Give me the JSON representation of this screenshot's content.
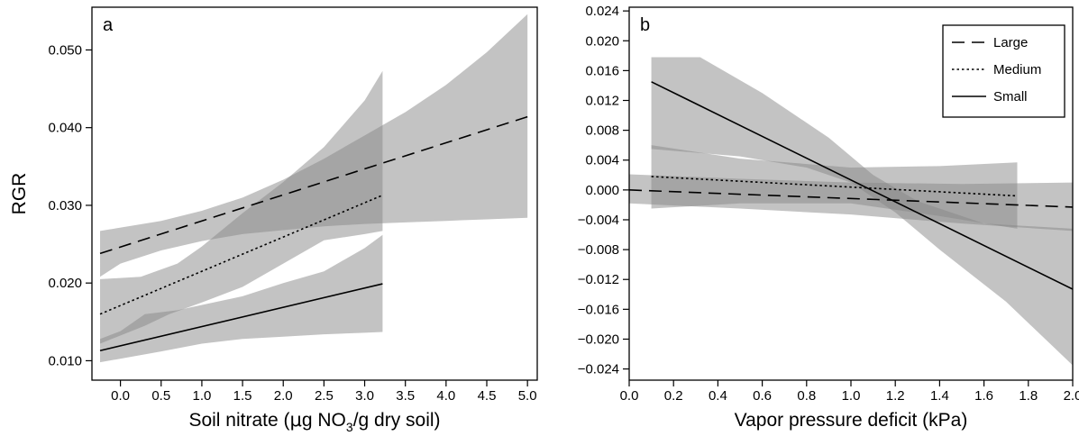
{
  "chart_data": [
    {
      "type": "line",
      "panel_label": "a",
      "xlabel_prefix": "Soil nitrate (",
      "xlabel_mu": "μ",
      "xlabel_mid": "g NO",
      "xlabel_sub": "3",
      "xlabel_suffix": "/g dry soil)",
      "ylabel": "RGR",
      "xlim": [
        -0.35,
        5.12
      ],
      "ylim": [
        0.0075,
        0.0555
      ],
      "x_ticks": [
        0.0,
        0.5,
        1.0,
        1.5,
        2.0,
        2.5,
        3.0,
        3.5,
        4.0,
        4.5,
        5.0
      ],
      "x_tick_labels": [
        "0.0",
        "0.5",
        "1.0",
        "1.5",
        "2.0",
        "2.5",
        "3.0",
        "3.5",
        "4.0",
        "4.5",
        "5.0"
      ],
      "y_ticks": [
        0.01,
        0.02,
        0.03,
        0.04,
        0.05
      ],
      "y_tick_labels": [
        "0.010",
        "0.020",
        "0.030",
        "0.040",
        "0.050"
      ],
      "series": [
        {
          "name": "Large",
          "style": "dashed",
          "line": [
            [
              -0.25,
              0.0238
            ],
            [
              5.0,
              0.0414
            ]
          ],
          "band_upper": [
            [
              -0.25,
              0.0267
            ],
            [
              0.5,
              0.028
            ],
            [
              1.0,
              0.0293
            ],
            [
              1.5,
              0.031
            ],
            [
              2.0,
              0.0333
            ],
            [
              2.5,
              0.036
            ],
            [
              3.0,
              0.039
            ],
            [
              3.5,
              0.042
            ],
            [
              4.0,
              0.0455
            ],
            [
              4.5,
              0.0497
            ],
            [
              5.0,
              0.0546
            ]
          ],
          "band_lower": [
            [
              -0.25,
              0.0208
            ],
            [
              0.0,
              0.0225
            ],
            [
              0.5,
              0.0242
            ],
            [
              1.0,
              0.0254
            ],
            [
              1.5,
              0.0263
            ],
            [
              2.0,
              0.0268
            ],
            [
              2.5,
              0.0273
            ],
            [
              3.0,
              0.0276
            ],
            [
              3.5,
              0.0278
            ],
            [
              4.0,
              0.028
            ],
            [
              4.5,
              0.0282
            ],
            [
              5.0,
              0.0284
            ]
          ]
        },
        {
          "name": "Medium",
          "style": "dotted",
          "line": [
            [
              -0.25,
              0.016
            ],
            [
              3.22,
              0.0313
            ]
          ],
          "band_upper": [
            [
              -0.25,
              0.0205
            ],
            [
              0.25,
              0.0208
            ],
            [
              0.7,
              0.0225
            ],
            [
              1.0,
              0.0247
            ],
            [
              1.5,
              0.029
            ],
            [
              2.0,
              0.033
            ],
            [
              2.5,
              0.0375
            ],
            [
              3.0,
              0.0435
            ],
            [
              3.22,
              0.0473
            ]
          ],
          "band_lower": [
            [
              -0.25,
              0.0122
            ],
            [
              0.3,
              0.0145
            ],
            [
              0.6,
              0.016
            ],
            [
              1.0,
              0.0175
            ],
            [
              1.5,
              0.0195
            ],
            [
              2.0,
              0.0225
            ],
            [
              2.5,
              0.0255
            ],
            [
              3.0,
              0.0263
            ],
            [
              3.22,
              0.0267
            ]
          ]
        },
        {
          "name": "Small",
          "style": "solid",
          "line": [
            [
              -0.25,
              0.0113
            ],
            [
              3.22,
              0.0199
            ]
          ],
          "band_upper": [
            [
              -0.25,
              0.0128
            ],
            [
              0.0,
              0.0138
            ],
            [
              0.3,
              0.016
            ],
            [
              0.7,
              0.0165
            ],
            [
              1.5,
              0.0183
            ],
            [
              2.0,
              0.02
            ],
            [
              2.5,
              0.0215
            ],
            [
              3.0,
              0.0245
            ],
            [
              3.22,
              0.0262
            ]
          ],
          "band_lower": [
            [
              -0.25,
              0.0098
            ],
            [
              0.5,
              0.0112
            ],
            [
              1.0,
              0.0122
            ],
            [
              1.5,
              0.0128
            ],
            [
              2.0,
              0.0131
            ],
            [
              2.5,
              0.0134
            ],
            [
              3.0,
              0.0136
            ],
            [
              3.22,
              0.0137
            ]
          ]
        }
      ]
    },
    {
      "type": "line",
      "panel_label": "b",
      "xlabel": "Vapor pressure deficit (kPa)",
      "ylabel": "",
      "xlim": [
        0.0,
        2.0
      ],
      "ylim": [
        -0.0255,
        0.0245
      ],
      "x_ticks": [
        0.0,
        0.2,
        0.4,
        0.6,
        0.8,
        1.0,
        1.2,
        1.4,
        1.6,
        1.8,
        2.0
      ],
      "x_tick_labels": [
        "0.0",
        "0.2",
        "0.4",
        "0.6",
        "0.8",
        "1.0",
        "1.2",
        "1.4",
        "1.6",
        "1.8",
        "2.0"
      ],
      "y_ticks": [
        0.024,
        0.02,
        0.016,
        0.012,
        0.008,
        0.004,
        0.0,
        -0.004,
        -0.008,
        -0.012,
        -0.016,
        -0.02,
        -0.024
      ],
      "y_tick_labels": [
        "0.024",
        "0.020",
        "0.016",
        "0.012",
        "0.008",
        "0.004",
        "0.000",
        "−0.004",
        "−0.008",
        "−0.012",
        "−0.016",
        "−0.020",
        "−0.024"
      ],
      "legend": {
        "position": "top-right",
        "entries": [
          {
            "label": "Large",
            "style": "dashed"
          },
          {
            "label": "Medium",
            "style": "dotted"
          },
          {
            "label": "Small",
            "style": "solid"
          }
        ]
      },
      "series": [
        {
          "name": "Large",
          "style": "dashed",
          "line": [
            [
              0.0,
              0.0
            ],
            [
              2.0,
              -0.0023
            ]
          ],
          "band_upper": [
            [
              0.0,
              0.0021
            ],
            [
              0.5,
              0.0015
            ],
            [
              1.0,
              0.001
            ],
            [
              1.5,
              0.0008
            ],
            [
              2.0,
              0.001
            ]
          ],
          "band_lower": [
            [
              0.0,
              -0.0018
            ],
            [
              0.5,
              -0.0025
            ],
            [
              1.0,
              -0.0033
            ],
            [
              1.5,
              -0.0045
            ],
            [
              2.0,
              -0.0055
            ]
          ]
        },
        {
          "name": "Medium",
          "style": "dotted",
          "line": [
            [
              0.1,
              0.0018
            ],
            [
              1.75,
              -0.0008
            ]
          ],
          "band_upper": [
            [
              0.1,
              0.006
            ],
            [
              0.5,
              0.0042
            ],
            [
              1.0,
              0.003
            ],
            [
              1.4,
              0.0032
            ],
            [
              1.75,
              0.0037
            ]
          ],
          "band_lower": [
            [
              0.1,
              -0.0025
            ],
            [
              0.5,
              -0.0018
            ],
            [
              1.0,
              -0.0018
            ],
            [
              1.4,
              -0.0035
            ],
            [
              1.75,
              -0.0052
            ]
          ]
        },
        {
          "name": "Small",
          "style": "solid",
          "line": [
            [
              0.1,
              0.0145
            ],
            [
              2.0,
              -0.0133
            ]
          ],
          "band_upper": [
            [
              0.1,
              0.0178
            ],
            [
              0.32,
              0.0178
            ],
            [
              0.6,
              0.013
            ],
            [
              0.9,
              0.007
            ],
            [
              1.1,
              0.002
            ],
            [
              1.3,
              -0.0015
            ],
            [
              1.6,
              -0.0045
            ],
            [
              2.0,
              -0.0052
            ]
          ],
          "band_lower": [
            [
              0.1,
              0.0055
            ],
            [
              0.5,
              0.0045
            ],
            [
              0.8,
              0.003
            ],
            [
              1.0,
              0.001
            ],
            [
              1.2,
              -0.003
            ],
            [
              1.4,
              -0.008
            ],
            [
              1.7,
              -0.015
            ],
            [
              2.0,
              -0.0235
            ]
          ]
        }
      ]
    }
  ]
}
